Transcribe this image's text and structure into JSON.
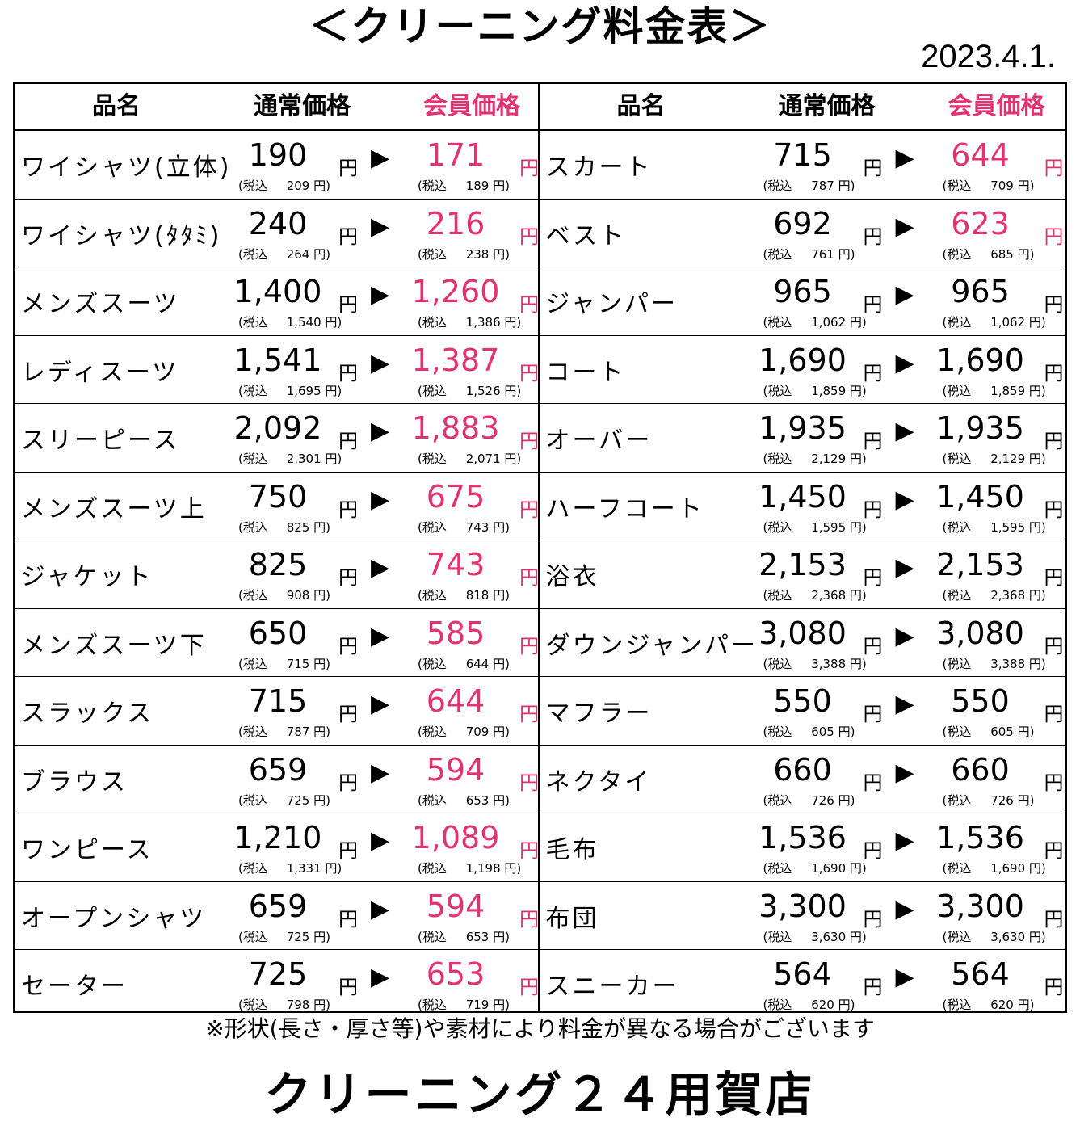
{
  "title": "＜クリーニング料金表＞",
  "date": "2023.4.1.",
  "headers": {
    "name": "品名",
    "regular": "通常価格",
    "member": "会員価格"
  },
  "arrow": "▶",
  "yen": "円",
  "tax_prefix": "(税込",
  "left_items": [
    {
      "name": "ワイシャツ(立体)",
      "regular": "190",
      "regular_tax": "209",
      "member": "171",
      "member_tax": "189",
      "member_pink": true
    },
    {
      "name": "ワイシャツ(ﾀﾀﾐ)",
      "regular": "240",
      "regular_tax": "264",
      "member": "216",
      "member_tax": "238",
      "member_pink": true
    },
    {
      "name": "メンズスーツ",
      "regular": "1,400",
      "regular_tax": "1,540",
      "member": "1,260",
      "member_tax": "1,386",
      "member_pink": true
    },
    {
      "name": "レディスーツ",
      "regular": "1,541",
      "regular_tax": "1,695",
      "member": "1,387",
      "member_tax": "1,526",
      "member_pink": true
    },
    {
      "name": "スリーピース",
      "regular": "2,092",
      "regular_tax": "2,301",
      "member": "1,883",
      "member_tax": "2,071",
      "member_pink": true
    },
    {
      "name": "メンズスーツ上",
      "regular": "750",
      "regular_tax": "825",
      "member": "675",
      "member_tax": "743",
      "member_pink": true
    },
    {
      "name": "ジャケット",
      "regular": "825",
      "regular_tax": "908",
      "member": "743",
      "member_tax": "818",
      "member_pink": true
    },
    {
      "name": "メンズスーツ下",
      "regular": "650",
      "regular_tax": "715",
      "member": "585",
      "member_tax": "644",
      "member_pink": true
    },
    {
      "name": "スラックス",
      "regular": "715",
      "regular_tax": "787",
      "member": "644",
      "member_tax": "709",
      "member_pink": true
    },
    {
      "name": "ブラウス",
      "regular": "659",
      "regular_tax": "725",
      "member": "594",
      "member_tax": "653",
      "member_pink": true
    },
    {
      "name": "ワンピース",
      "regular": "1,210",
      "regular_tax": "1,331",
      "member": "1,089",
      "member_tax": "1,198",
      "member_pink": true
    },
    {
      "name": "オープンシャツ",
      "regular": "659",
      "regular_tax": "725",
      "member": "594",
      "member_tax": "653",
      "member_pink": true
    },
    {
      "name": "セーター",
      "regular": "725",
      "regular_tax": "798",
      "member": "653",
      "member_tax": "719",
      "member_pink": true
    }
  ],
  "right_items": [
    {
      "name": "スカート",
      "regular": "715",
      "regular_tax": "787",
      "member": "644",
      "member_tax": "709",
      "member_pink": true
    },
    {
      "name": "ベスト",
      "regular": "692",
      "regular_tax": "761",
      "member": "623",
      "member_tax": "685",
      "member_pink": true
    },
    {
      "name": "ジャンパー",
      "regular": "965",
      "regular_tax": "1,062",
      "member": "965",
      "member_tax": "1,062",
      "member_pink": false
    },
    {
      "name": "コート",
      "regular": "1,690",
      "regular_tax": "1,859",
      "member": "1,690",
      "member_tax": "1,859",
      "member_pink": false
    },
    {
      "name": "オーバー",
      "regular": "1,935",
      "regular_tax": "2,129",
      "member": "1,935",
      "member_tax": "2,129",
      "member_pink": false
    },
    {
      "name": "ハーフコート",
      "regular": "1,450",
      "regular_tax": "1,595",
      "member": "1,450",
      "member_tax": "1,595",
      "member_pink": false
    },
    {
      "name": "浴衣",
      "regular": "2,153",
      "regular_tax": "2,368",
      "member": "2,153",
      "member_tax": "2,368",
      "member_pink": false
    },
    {
      "name": "ダウンジャンパー",
      "regular": "3,080",
      "regular_tax": "3,388",
      "member": "3,080",
      "member_tax": "3,388",
      "member_pink": false
    },
    {
      "name": "マフラー",
      "regular": "550",
      "regular_tax": "605",
      "member": "550",
      "member_tax": "605",
      "member_pink": false
    },
    {
      "name": "ネクタイ",
      "regular": "660",
      "regular_tax": "726",
      "member": "660",
      "member_tax": "726",
      "member_pink": false
    },
    {
      "name": "毛布",
      "regular": "1,536",
      "regular_tax": "1,690",
      "member": "1,536",
      "member_tax": "1,690",
      "member_pink": false
    },
    {
      "name": "布団",
      "regular": "3,300",
      "regular_tax": "3,630",
      "member": "3,300",
      "member_tax": "3,630",
      "member_pink": false
    },
    {
      "name": "スニーカー",
      "regular": "564",
      "regular_tax": "620",
      "member": "564",
      "member_tax": "620",
      "member_pink": false
    }
  ],
  "note": "※形状(長さ・厚さ等)や素材により料金が異なる場合がございます",
  "footer": "クリーニング２４用賀店",
  "colors": {
    "member_accent": "#e0336f",
    "text": "#000000"
  }
}
